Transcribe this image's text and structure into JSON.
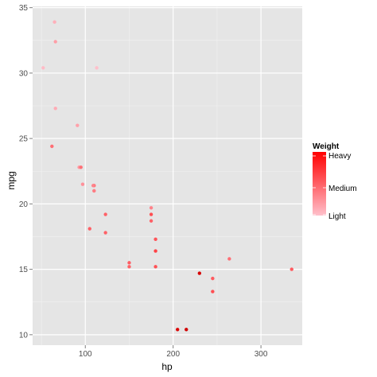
{
  "chart_data": {
    "type": "scatter",
    "xlabel": "hp",
    "ylabel": "mpg",
    "xlim": [
      40,
      347
    ],
    "ylim": [
      9.2,
      35.1
    ],
    "x_ticks": [
      100,
      200,
      300
    ],
    "y_ticks": [
      10,
      15,
      20,
      25,
      30,
      35
    ],
    "grid": true,
    "legend": {
      "title": "Weight",
      "placement": "right",
      "labels": [
        "Heavy",
        "Medium",
        "Light"
      ],
      "colors": {
        "heavy": "#FF0000",
        "light": "#FFC0CB"
      }
    },
    "points": [
      {
        "x": 110,
        "y": 21.0,
        "wt": 2.62
      },
      {
        "x": 110,
        "y": 21.0,
        "wt": 2.875
      },
      {
        "x": 93,
        "y": 22.8,
        "wt": 2.32
      },
      {
        "x": 110,
        "y": 21.4,
        "wt": 3.215
      },
      {
        "x": 175,
        "y": 18.7,
        "wt": 3.44
      },
      {
        "x": 105,
        "y": 18.1,
        "wt": 3.46
      },
      {
        "x": 245,
        "y": 14.3,
        "wt": 3.57
      },
      {
        "x": 62,
        "y": 24.4,
        "wt": 3.19
      },
      {
        "x": 95,
        "y": 22.8,
        "wt": 3.15
      },
      {
        "x": 123,
        "y": 19.2,
        "wt": 3.44
      },
      {
        "x": 123,
        "y": 17.8,
        "wt": 3.44
      },
      {
        "x": 180,
        "y": 16.4,
        "wt": 4.07
      },
      {
        "x": 180,
        "y": 17.3,
        "wt": 3.73
      },
      {
        "x": 180,
        "y": 15.2,
        "wt": 3.78
      },
      {
        "x": 205,
        "y": 10.4,
        "wt": 5.25
      },
      {
        "x": 215,
        "y": 10.4,
        "wt": 5.424
      },
      {
        "x": 230,
        "y": 14.7,
        "wt": 5.345
      },
      {
        "x": 66,
        "y": 32.4,
        "wt": 2.2
      },
      {
        "x": 52,
        "y": 30.4,
        "wt": 1.615
      },
      {
        "x": 65,
        "y": 33.9,
        "wt": 1.835
      },
      {
        "x": 97,
        "y": 21.5,
        "wt": 2.465
      },
      {
        "x": 150,
        "y": 15.5,
        "wt": 3.52
      },
      {
        "x": 150,
        "y": 15.2,
        "wt": 3.435
      },
      {
        "x": 245,
        "y": 13.3,
        "wt": 3.84
      },
      {
        "x": 175,
        "y": 19.2,
        "wt": 3.845
      },
      {
        "x": 66,
        "y": 27.3,
        "wt": 1.935
      },
      {
        "x": 91,
        "y": 26.0,
        "wt": 2.14
      },
      {
        "x": 113,
        "y": 30.4,
        "wt": 1.513
      },
      {
        "x": 264,
        "y": 15.8,
        "wt": 3.17
      },
      {
        "x": 175,
        "y": 19.7,
        "wt": 2.77
      },
      {
        "x": 335,
        "y": 15.0,
        "wt": 3.57
      },
      {
        "x": 109,
        "y": 21.4,
        "wt": 2.78
      }
    ]
  }
}
